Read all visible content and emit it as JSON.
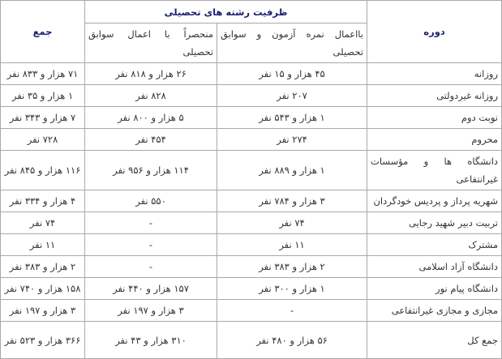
{
  "header": {
    "period": "دوره",
    "capacity": "ظرفیت رشته های تحصیلی",
    "with_exam": "بااعمال نمره آزمون و سوابق تحصیلی",
    "records_only": "منحصراً با اعمال سوابق تحصیلی",
    "total": "جمع"
  },
  "rows": [
    {
      "period": "روزانه",
      "with_exam": "۴۵ هزار و ۱۵ نفر",
      "records_only": "۲۶ هزار و ۸۱۸ نفر",
      "total": "۷۱ هزار و ۸۳۳ نفر"
    },
    {
      "period": "روزانه غیردولتی",
      "with_exam": "۲۰۷ نفر",
      "records_only": "۸۲۸ نفر",
      "total": "۱ هزار و ۳۵ نفر"
    },
    {
      "period": "نوبت دوم",
      "with_exam": "۱ هزار و ۵۴۳ نفر",
      "records_only": "۵ هزار و ۸۰۰ نفر",
      "total": "۷ هزار و ۳۴۳ نفر"
    },
    {
      "period": "محروم",
      "with_exam": "۲۷۴ نفر",
      "records_only": "۴۵۴ نفر",
      "total": "۷۲۸ نفر"
    },
    {
      "period": "دانشگاه ها و مؤسسات غیرانتفاعی",
      "with_exam": "۱ هزار و ۸۸۹ نفر",
      "records_only": "۱۱۴ هزار و ۹۵۶ نفر",
      "total": "۱۱۶ هزار و ۸۴۵ نفر"
    },
    {
      "period": "شهریه پرداز و پردیس خودگردان",
      "with_exam": "۳ هزار و ۷۸۴ نفر",
      "records_only": "۵۵۰ نفر",
      "total": "۴ هزار و ۳۳۴ نفر"
    },
    {
      "period": "تربیت دبیر شهید رجایی",
      "with_exam": "۷۴ نفر",
      "records_only": "-",
      "total": "۷۴ نفر"
    },
    {
      "period": "مشترک",
      "with_exam": "۱۱ نفر",
      "records_only": "-",
      "total": "۱۱ نفر"
    },
    {
      "period": "دانشگاه آزاد اسلامی",
      "with_exam": "۲ هزار و ۳۸۳ نفر",
      "records_only": "-",
      "total": "۲ هزار و ۳۸۳ نفر"
    },
    {
      "period": "دانشگاه پیام نور",
      "with_exam": "۱ هزار و ۳۰۰ نفر",
      "records_only": "۱۵۷ هزار و ۴۴۰ نفر",
      "total": "۱۵۸ هزار و ۷۴۰ نفر"
    },
    {
      "period": "مجازی و مجازی غیرانتفاعی",
      "with_exam": "-",
      "records_only": "۳ هزار و ۱۹۷ نفر",
      "total": "۳ هزار و ۱۹۷ نفر"
    },
    {
      "period": "جمع کل",
      "with_exam": "۵۶ هزار و ۴۸۰ نفر",
      "records_only": "۳۱۰ هزار و ۴۳ نفر",
      "total": "۳۶۶ هزار و ۵۲۳ نفر"
    }
  ]
}
